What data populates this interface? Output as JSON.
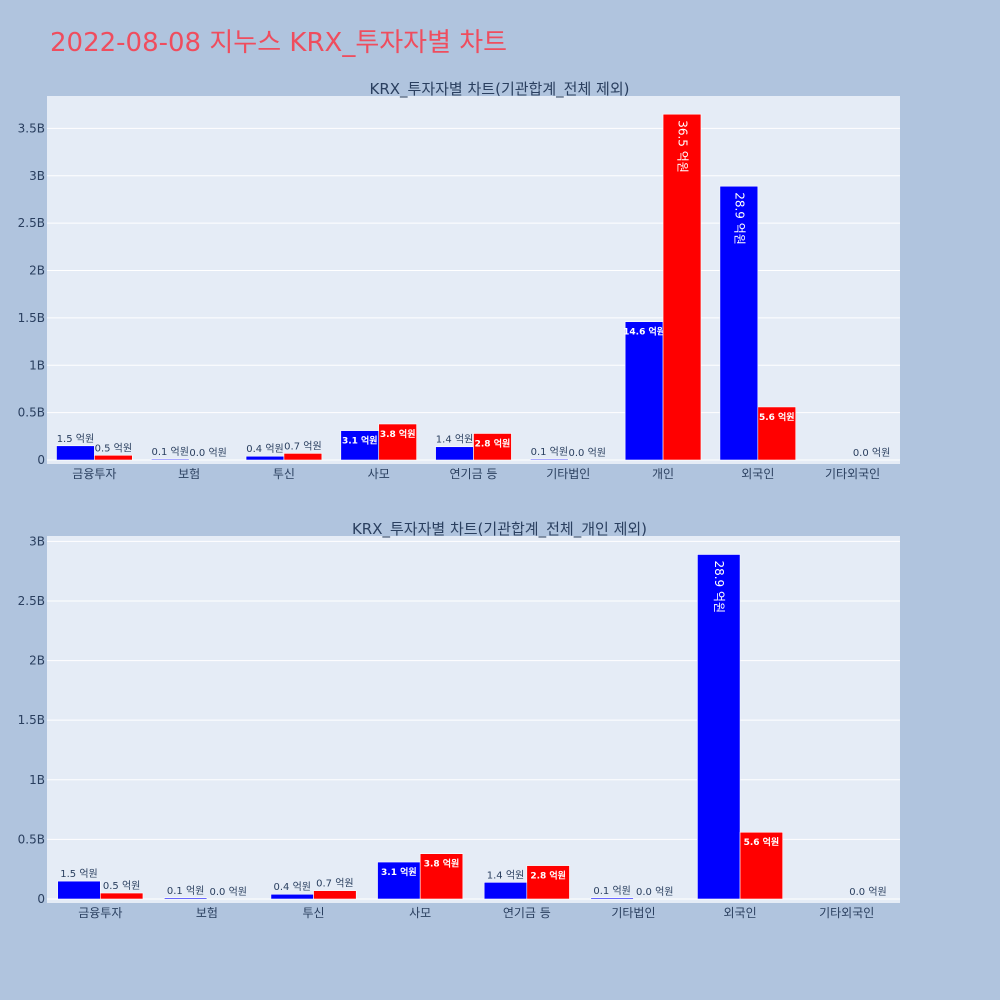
{
  "page": {
    "title": "2022-08-08 지누스 KRX_투자자별 차트"
  },
  "colors": {
    "background": "#b0c4de",
    "plot_bg": "#e5ecf6",
    "buy": "#0000ff",
    "sell": "#ff0000",
    "title": "#ef4d5e"
  },
  "chart_data": [
    {
      "type": "bar",
      "title": "KRX_투자자별 차트(기관합계_전체 제외)",
      "categories": [
        "금융투자",
        "보험",
        "투신",
        "사모",
        "연기금 등",
        "기타법인",
        "개인",
        "외국인",
        "기타외국인"
      ],
      "series": [
        {
          "color": "#0000ff",
          "values": [
            150000000,
            10000000,
            40000000,
            310000000,
            140000000,
            10000000,
            1460000000,
            2890000000,
            0
          ],
          "labels": [
            "1.5 억원",
            "0.1 억원",
            "0.4 억원",
            "3.1 억원",
            "1.4 억원",
            "0.1 억원",
            "14.6 억원",
            "28.9 억원",
            ""
          ]
        },
        {
          "color": "#ff0000",
          "values": [
            50000000,
            0,
            70000000,
            380000000,
            280000000,
            0,
            3650000000,
            560000000,
            0
          ],
          "labels": [
            "0.5 억원",
            "0.0 억원",
            "0.7 억원",
            "3.8 억원",
            "2.8 억원",
            "0.0 억원",
            "36.5 억원",
            "5.6 억원",
            "0.0 억원"
          ]
        }
      ],
      "yticks": [
        0,
        500000000,
        1000000000,
        1500000000,
        2000000000,
        2500000000,
        3000000000,
        3500000000
      ],
      "ytick_labels": [
        "0",
        "0.5B",
        "1B",
        "1.5B",
        "2B",
        "2.5B",
        "3B",
        "3.5B"
      ],
      "ylim": [
        0,
        3842105263
      ],
      "grid": true,
      "legend": "none"
    },
    {
      "type": "bar",
      "title": "KRX_투자자별 차트(기관합계_전체_개인 제외)",
      "categories": [
        "금융투자",
        "보험",
        "투신",
        "사모",
        "연기금 등",
        "기타법인",
        "외국인",
        "기타외국인"
      ],
      "series": [
        {
          "color": "#0000ff",
          "values": [
            150000000,
            10000000,
            40000000,
            310000000,
            140000000,
            10000000,
            2890000000,
            0
          ],
          "labels": [
            "1.5 억원",
            "0.1 억원",
            "0.4 억원",
            "3.1 억원",
            "1.4 억원",
            "0.1 억원",
            "28.9 억원",
            ""
          ]
        },
        {
          "color": "#ff0000",
          "values": [
            50000000,
            0,
            70000000,
            380000000,
            280000000,
            0,
            560000000,
            0
          ],
          "labels": [
            "0.5 억원",
            "0.0 억원",
            "0.7 억원",
            "3.8 억원",
            "2.8 억원",
            "0.0 억원",
            "5.6 억원",
            "0.0 억원"
          ]
        }
      ],
      "yticks": [
        0,
        500000000,
        1000000000,
        1500000000,
        2000000000,
        2500000000,
        3000000000
      ],
      "ytick_labels": [
        "0",
        "0.5B",
        "1B",
        "1.5B",
        "2B",
        "2.5B",
        "3B"
      ],
      "ylim": [
        0,
        3045000000
      ],
      "grid": true,
      "legend": "none"
    }
  ]
}
